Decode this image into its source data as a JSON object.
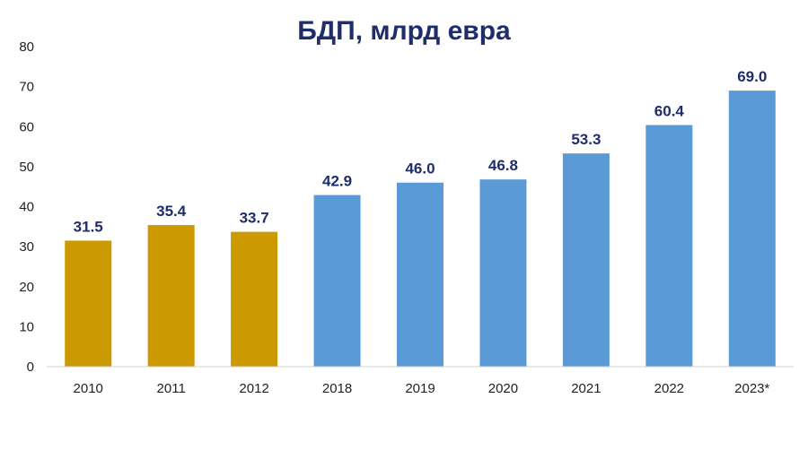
{
  "chart_data": {
    "type": "bar",
    "title": "БДП, млрд евра",
    "xlabel": "",
    "ylabel": "",
    "ylim": [
      0,
      80
    ],
    "yticks": [
      0,
      10,
      20,
      30,
      40,
      50,
      60,
      70,
      80
    ],
    "grid": false,
    "categories": [
      "2010",
      "2011",
      "2012",
      "2018",
      "2019",
      "2020",
      "2021",
      "2022",
      "2023*"
    ],
    "values": [
      31.5,
      35.4,
      33.7,
      42.9,
      46.0,
      46.8,
      53.3,
      60.4,
      69.0
    ],
    "value_labels": [
      "31.5",
      "35.4",
      "33.7",
      "42.9",
      "46.0",
      "46.8",
      "53.3",
      "60.4",
      "69.0"
    ],
    "colors": [
      "#cc9900",
      "#cc9900",
      "#cc9900",
      "#5b9bd5",
      "#5b9bd5",
      "#5b9bd5",
      "#5b9bd5",
      "#5b9bd5",
      "#5b9bd5"
    ],
    "colors_meaning": "",
    "title_color": "#1f2d6b"
  }
}
